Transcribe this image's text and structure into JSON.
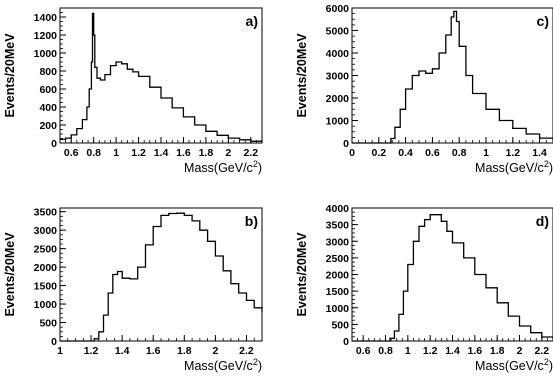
{
  "chart_data": [
    {
      "type": "histogram",
      "panel_label": "a)",
      "xlabel": "Mass(GeV/c",
      "xlabel_sup": "2",
      "xlabel_close": ")",
      "ylabel": "Events/20MeV",
      "xlim": [
        0.5,
        2.3
      ],
      "ylim": [
        0,
        1500
      ],
      "xticks": [
        0.6,
        0.8,
        1,
        1.2,
        1.4,
        1.6,
        1.8,
        2,
        2.2
      ],
      "xtick_labels": [
        "0.6",
        "0.8",
        "1",
        "1.2",
        "1.4",
        "1.6",
        "1.8",
        "2",
        "2.2"
      ],
      "yticks": [
        0,
        200,
        400,
        600,
        800,
        1000,
        1200,
        1400
      ],
      "ytick_labels": [
        "0",
        "200",
        "400",
        "600",
        "800",
        "1000",
        "1200",
        "1400"
      ],
      "points": [
        [
          0.5,
          40
        ],
        [
          0.55,
          55
        ],
        [
          0.6,
          90
        ],
        [
          0.65,
          160
        ],
        [
          0.7,
          260
        ],
        [
          0.74,
          400
        ],
        [
          0.76,
          600
        ],
        [
          0.78,
          900
        ],
        [
          0.79,
          1440
        ],
        [
          0.8,
          1200
        ],
        [
          0.81,
          840
        ],
        [
          0.83,
          720
        ],
        [
          0.86,
          700
        ],
        [
          0.9,
          760
        ],
        [
          0.95,
          860
        ],
        [
          1.0,
          900
        ],
        [
          1.05,
          880
        ],
        [
          1.1,
          820
        ],
        [
          1.15,
          790
        ],
        [
          1.2,
          740
        ],
        [
          1.3,
          620
        ],
        [
          1.4,
          500
        ],
        [
          1.5,
          390
        ],
        [
          1.6,
          290
        ],
        [
          1.7,
          200
        ],
        [
          1.8,
          130
        ],
        [
          1.9,
          85
        ],
        [
          2.0,
          55
        ],
        [
          2.1,
          35
        ],
        [
          2.2,
          20
        ],
        [
          2.3,
          10
        ]
      ]
    },
    {
      "type": "histogram",
      "panel_label": "c)",
      "xlabel": "Mass(GeV/c",
      "xlabel_sup": "2",
      "xlabel_close": ")",
      "ylabel": "Events/20MeV",
      "xlim": [
        0,
        1.5
      ],
      "ylim": [
        0,
        6000
      ],
      "xticks": [
        0,
        0.2,
        0.4,
        0.6,
        0.8,
        1,
        1.2,
        1.4
      ],
      "xtick_labels": [
        "0",
        "0.2",
        "0.4",
        "0.6",
        "0.8",
        "1",
        "1.2",
        "1.4"
      ],
      "yticks": [
        0,
        1000,
        2000,
        3000,
        4000,
        5000,
        6000
      ],
      "ytick_labels": [
        "0",
        "1000",
        "2000",
        "3000",
        "4000",
        "5000",
        "6000"
      ],
      "points": [
        [
          0.0,
          0
        ],
        [
          0.27,
          0
        ],
        [
          0.29,
          200
        ],
        [
          0.32,
          700
        ],
        [
          0.36,
          1500
        ],
        [
          0.4,
          2400
        ],
        [
          0.45,
          3000
        ],
        [
          0.5,
          3200
        ],
        [
          0.55,
          3100
        ],
        [
          0.6,
          3300
        ],
        [
          0.65,
          4000
        ],
        [
          0.7,
          4800
        ],
        [
          0.74,
          5600
        ],
        [
          0.76,
          5850
        ],
        [
          0.78,
          5400
        ],
        [
          0.8,
          4300
        ],
        [
          0.85,
          3000
        ],
        [
          0.9,
          2200
        ],
        [
          1.0,
          1500
        ],
        [
          1.1,
          1000
        ],
        [
          1.2,
          650
        ],
        [
          1.3,
          400
        ],
        [
          1.4,
          220
        ],
        [
          1.5,
          120
        ]
      ]
    },
    {
      "type": "histogram",
      "panel_label": "b)",
      "xlabel": "Mass(GeV/c",
      "xlabel_sup": "2",
      "xlabel_close": ")",
      "ylabel": "Events/20MeV",
      "xlim": [
        1.0,
        2.3
      ],
      "ylim": [
        0,
        3600
      ],
      "xticks": [
        1,
        1.2,
        1.4,
        1.6,
        1.8,
        2,
        2.2
      ],
      "xtick_labels": [
        "1",
        "1.2",
        "1.4",
        "1.6",
        "1.8",
        "2",
        "2.2"
      ],
      "yticks": [
        0,
        500,
        1000,
        1500,
        2000,
        2500,
        3000,
        3500
      ],
      "ytick_labels": [
        "0",
        "500",
        "1000",
        "1500",
        "2000",
        "2500",
        "3000",
        "3500"
      ],
      "points": [
        [
          1.0,
          0
        ],
        [
          1.2,
          0
        ],
        [
          1.22,
          60
        ],
        [
          1.25,
          250
        ],
        [
          1.28,
          700
        ],
        [
          1.31,
          1300
        ],
        [
          1.34,
          1800
        ],
        [
          1.37,
          1880
        ],
        [
          1.4,
          1700
        ],
        [
          1.45,
          1680
        ],
        [
          1.5,
          2000
        ],
        [
          1.55,
          2600
        ],
        [
          1.6,
          3100
        ],
        [
          1.65,
          3400
        ],
        [
          1.7,
          3450
        ],
        [
          1.75,
          3460
        ],
        [
          1.8,
          3400
        ],
        [
          1.85,
          3250
        ],
        [
          1.9,
          3000
        ],
        [
          1.95,
          2700
        ],
        [
          2.0,
          2300
        ],
        [
          2.05,
          1900
        ],
        [
          2.1,
          1550
        ],
        [
          2.15,
          1300
        ],
        [
          2.2,
          1100
        ],
        [
          2.25,
          900
        ],
        [
          2.3,
          780
        ]
      ]
    },
    {
      "type": "histogram",
      "panel_label": "d)",
      "xlabel": "Mass(GeV/c",
      "xlabel_sup": "2",
      "xlabel_close": ")",
      "ylabel": "Events/20MeV",
      "xlim": [
        0.5,
        2.3
      ],
      "ylim": [
        0,
        4000
      ],
      "xticks": [
        0.6,
        0.8,
        1,
        1.2,
        1.4,
        1.6,
        1.8,
        2,
        2.2
      ],
      "xtick_labels": [
        "0.6",
        "0.8",
        "1",
        "1.2",
        "1.4",
        "1.6",
        "1.8",
        "2",
        "2.2"
      ],
      "yticks": [
        0,
        500,
        1000,
        1500,
        2000,
        2500,
        3000,
        3500,
        4000
      ],
      "ytick_labels": [
        "0",
        "500",
        "1000",
        "1500",
        "2000",
        "2500",
        "3000",
        "3500",
        "4000"
      ],
      "points": [
        [
          0.5,
          0
        ],
        [
          0.8,
          0
        ],
        [
          0.84,
          80
        ],
        [
          0.88,
          300
        ],
        [
          0.92,
          800
        ],
        [
          0.96,
          1500
        ],
        [
          1.0,
          2300
        ],
        [
          1.05,
          3000
        ],
        [
          1.1,
          3450
        ],
        [
          1.15,
          3650
        ],
        [
          1.2,
          3800
        ],
        [
          1.25,
          3800
        ],
        [
          1.3,
          3600
        ],
        [
          1.35,
          3300
        ],
        [
          1.4,
          2950
        ],
        [
          1.5,
          2500
        ],
        [
          1.6,
          2000
        ],
        [
          1.7,
          1600
        ],
        [
          1.8,
          1150
        ],
        [
          1.9,
          750
        ],
        [
          2.0,
          450
        ],
        [
          2.1,
          250
        ],
        [
          2.2,
          120
        ],
        [
          2.3,
          60
        ]
      ]
    }
  ]
}
